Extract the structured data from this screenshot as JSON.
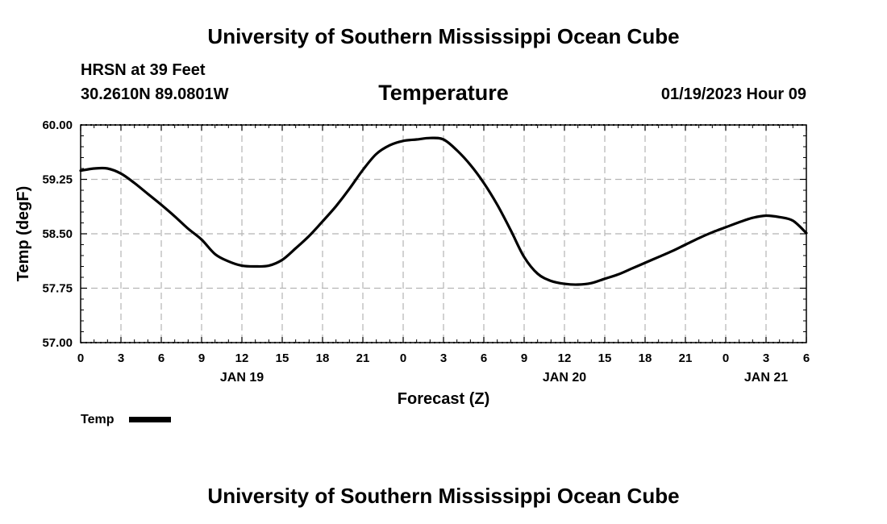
{
  "header": {
    "main_title": "University of Southern Mississippi Ocean Cube",
    "station": "HRSN at 39 Feet",
    "coords": "30.2610N  89.0801W",
    "timestamp": "01/19/2023 Hour 09"
  },
  "footer": {
    "title": "University of Southern Mississippi Ocean Cube"
  },
  "chart_data": {
    "type": "line",
    "title": "Temperature",
    "xlabel": "Forecast (Z)",
    "ylabel": "Temp (degF)",
    "ylim": [
      57.0,
      60.0
    ],
    "xlim": [
      0,
      54
    ],
    "yticks": [
      "57.00",
      "57.75",
      "58.50",
      "59.25",
      "60.00"
    ],
    "xtick_labels": [
      "0",
      "3",
      "6",
      "9",
      "12",
      "15",
      "18",
      "21",
      "0",
      "3",
      "6",
      "9",
      "12",
      "15",
      "18",
      "21",
      "0",
      "3",
      "6"
    ],
    "date_labels": [
      {
        "x": 12,
        "label": "JAN 19"
      },
      {
        "x": 36,
        "label": "JAN 20"
      },
      {
        "x": 51,
        "label": "JAN 21"
      }
    ],
    "grid": true,
    "legend": {
      "position": "bottom-left",
      "entries": [
        "Temp"
      ]
    },
    "series": [
      {
        "name": "Temp",
        "color": "#000000",
        "x": [
          0,
          1,
          2,
          3,
          4,
          5,
          6,
          7,
          8,
          9,
          10,
          11,
          12,
          13,
          14,
          15,
          16,
          17,
          18,
          19,
          20,
          21,
          22,
          23,
          24,
          25,
          26,
          27,
          28,
          29,
          30,
          31,
          32,
          33,
          34,
          35,
          36,
          37,
          38,
          39,
          40,
          41,
          42,
          43,
          44,
          45,
          46,
          47,
          48,
          49,
          50,
          51,
          52,
          53,
          54
        ],
        "values": [
          59.37,
          59.4,
          59.4,
          59.33,
          59.2,
          59.05,
          58.9,
          58.74,
          58.57,
          58.42,
          58.22,
          58.12,
          58.06,
          58.05,
          58.06,
          58.14,
          58.3,
          58.47,
          58.67,
          58.88,
          59.12,
          59.38,
          59.6,
          59.72,
          59.78,
          59.8,
          59.82,
          59.8,
          59.65,
          59.45,
          59.2,
          58.9,
          58.55,
          58.18,
          57.95,
          57.85,
          57.81,
          57.8,
          57.82,
          57.88,
          57.94,
          58.02,
          58.1,
          58.18,
          58.26,
          58.35,
          58.44,
          58.52,
          58.59,
          58.66,
          58.72,
          58.75,
          58.73,
          58.68,
          58.51
        ]
      }
    ]
  }
}
